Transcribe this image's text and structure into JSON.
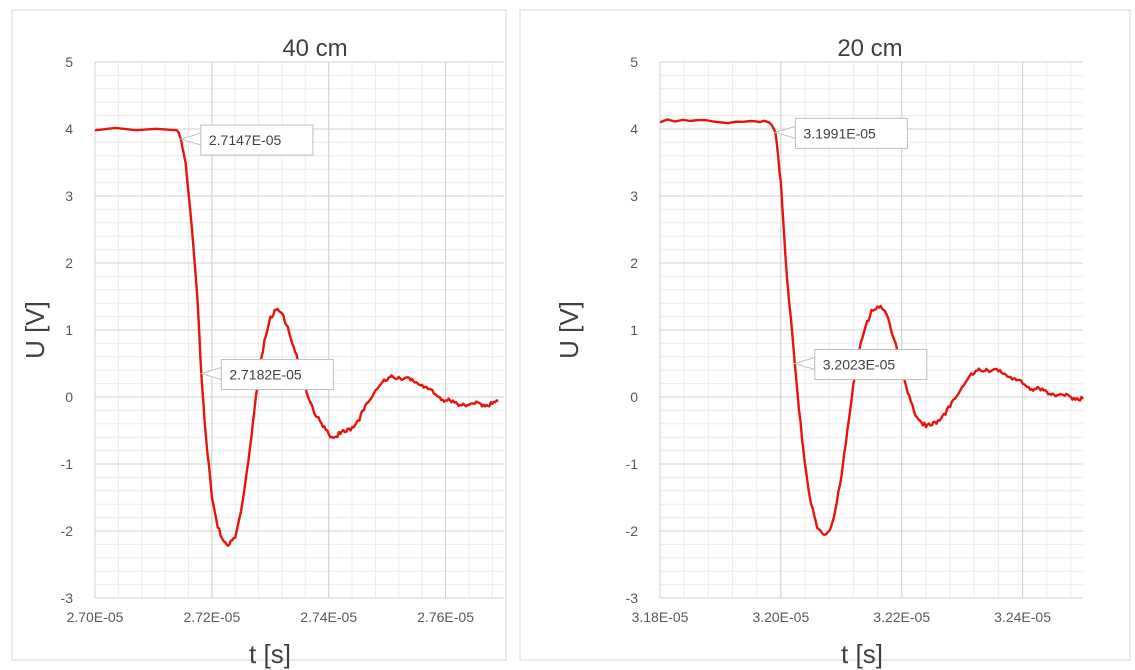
{
  "chart_data": [
    {
      "type": "line",
      "title": "40 cm",
      "xlabel": "t [s]",
      "ylabel": "U [V]",
      "xlim": [
        2.7e-05,
        2.77e-05
      ],
      "ylim": [
        -3,
        5
      ],
      "xticks": [
        2.7e-05,
        2.72e-05,
        2.74e-05,
        2.76e-05
      ],
      "xtick_labels": [
        "2.70E-05",
        "2.72E-05",
        "2.74E-05",
        "2.76E-05"
      ],
      "yticks": [
        -3,
        -2,
        -1,
        0,
        1,
        2,
        3,
        4,
        5
      ],
      "ytick_labels": [
        "-3",
        "-2",
        "-1",
        "0",
        "1",
        "2",
        "3",
        "4",
        "5"
      ],
      "grid": true,
      "line_color": "#e8140c",
      "series": [
        {
          "x": [
            2.7e-05,
            2.714e-05,
            2.7147e-05,
            2.7155e-05,
            2.7165e-05,
            2.7175e-05,
            2.7182e-05,
            2.719e-05,
            2.72e-05,
            2.721e-05,
            2.722e-05,
            2.723e-05,
            2.724e-05,
            2.725e-05,
            2.726e-05,
            2.727e-05,
            2.728e-05,
            2.729e-05,
            2.73e-05,
            2.731e-05,
            2.732e-05,
            2.733e-05,
            2.734e-05,
            2.735e-05,
            2.736e-05,
            2.737e-05,
            2.738e-05,
            2.739e-05,
            2.74e-05,
            2.741e-05,
            2.742e-05,
            2.743e-05,
            2.744e-05,
            2.745e-05,
            2.746e-05,
            2.747e-05,
            2.748e-05,
            2.749e-05,
            2.75e-05,
            2.751e-05,
            2.752e-05,
            2.753e-05,
            2.754e-05,
            2.755e-05,
            2.756e-05,
            2.757e-05,
            2.758e-05,
            2.759e-05,
            2.76e-05,
            2.761e-05,
            2.762e-05,
            2.763e-05,
            2.764e-05,
            2.765e-05,
            2.766e-05,
            2.767e-05,
            2.768e-05,
            2.769e-05
          ],
          "y": [
            3.98,
            3.98,
            3.85,
            3.5,
            2.6,
            1.5,
            0.35,
            -0.6,
            -1.5,
            -1.95,
            -2.15,
            -2.2,
            -2.1,
            -1.7,
            -1.1,
            -0.4,
            0.3,
            0.85,
            1.2,
            1.3,
            1.25,
            1.05,
            0.75,
            0.45,
            0.15,
            -0.1,
            -0.3,
            -0.45,
            -0.55,
            -0.6,
            -0.55,
            -0.52,
            -0.45,
            -0.35,
            -0.2,
            -0.05,
            0.1,
            0.2,
            0.25,
            0.3,
            0.3,
            0.28,
            0.25,
            0.22,
            0.18,
            0.12,
            0.05,
            0.0,
            -0.05,
            -0.08,
            -0.1,
            -0.1,
            -0.12,
            -0.1,
            -0.1,
            -0.12,
            -0.1,
            -0.06
          ]
        }
      ],
      "annotations": [
        {
          "text": "2.7147E-05",
          "x": 2.7147e-05,
          "y": 3.85
        },
        {
          "text": "2.7182E-05",
          "x": 2.7182e-05,
          "y": 0.35
        }
      ]
    },
    {
      "type": "line",
      "title": "20 cm",
      "xlabel": "t [s]",
      "ylabel": "U [V]",
      "xlim": [
        3.18e-05,
        3.25e-05
      ],
      "ylim": [
        -3,
        5
      ],
      "xticks": [
        3.18e-05,
        3.2e-05,
        3.22e-05,
        3.24e-05
      ],
      "xtick_labels": [
        "3.18E-05",
        "3.20E-05",
        "3.22E-05",
        "3.24E-05"
      ],
      "yticks": [
        -3,
        -2,
        -1,
        0,
        1,
        2,
        3,
        4,
        5
      ],
      "ytick_labels": [
        "-3",
        "-2",
        "-1",
        "0",
        "1",
        "2",
        "3",
        "4",
        "5"
      ],
      "grid": true,
      "line_color": "#e8140c",
      "series": [
        {
          "x": [
            3.18e-05,
            3.185e-05,
            3.19e-05,
            3.195e-05,
            3.198e-05,
            3.1991e-05,
            3.2e-05,
            3.201e-05,
            3.2023e-05,
            3.203e-05,
            3.204e-05,
            3.205e-05,
            3.206e-05,
            3.207e-05,
            3.208e-05,
            3.209e-05,
            3.21e-05,
            3.211e-05,
            3.212e-05,
            3.213e-05,
            3.214e-05,
            3.215e-05,
            3.216e-05,
            3.217e-05,
            3.218e-05,
            3.219e-05,
            3.22e-05,
            3.221e-05,
            3.222e-05,
            3.223e-05,
            3.224e-05,
            3.225e-05,
            3.226e-05,
            3.227e-05,
            3.228e-05,
            3.229e-05,
            3.23e-05,
            3.231e-05,
            3.232e-05,
            3.233e-05,
            3.234e-05,
            3.235e-05,
            3.236e-05,
            3.237e-05,
            3.238e-05,
            3.239e-05,
            3.24e-05,
            3.241e-05,
            3.242e-05,
            3.243e-05,
            3.244e-05,
            3.245e-05,
            3.246e-05,
            3.247e-05,
            3.248e-05,
            3.249e-05,
            3.25e-05
          ],
          "y": [
            4.1,
            4.12,
            4.1,
            4.12,
            4.1,
            3.95,
            3.2,
            1.8,
            0.5,
            -0.2,
            -1.0,
            -1.6,
            -1.95,
            -2.05,
            -2.0,
            -1.7,
            -1.2,
            -0.5,
            0.2,
            0.7,
            1.05,
            1.3,
            1.35,
            1.3,
            1.1,
            0.8,
            0.4,
            0.05,
            -0.2,
            -0.35,
            -0.45,
            -0.42,
            -0.35,
            -0.25,
            -0.15,
            0.0,
            0.15,
            0.28,
            0.35,
            0.4,
            0.42,
            0.4,
            0.38,
            0.35,
            0.3,
            0.25,
            0.2,
            0.15,
            0.12,
            0.1,
            0.08,
            0.05,
            0.03,
            0.02,
            0.0,
            -0.02,
            -0.03
          ]
        }
      ],
      "annotations": [
        {
          "text": "3.1991E-05",
          "x": 3.1991e-05,
          "y": 3.95
        },
        {
          "text": "3.2023E-05",
          "x": 3.2023e-05,
          "y": 0.5
        }
      ]
    }
  ]
}
